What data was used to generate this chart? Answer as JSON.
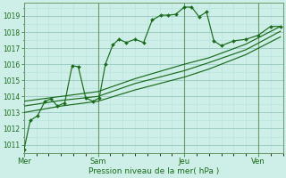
{
  "xlabel": "Pression niveau de la mer( hPa )",
  "bg_color": "#ceeee8",
  "grid_major_color": "#9ecec8",
  "grid_minor_color": "#b8e4e0",
  "line_color": "#1a6b1a",
  "spine_color": "#6a9a6a",
  "ylim": [
    1010.5,
    1019.8
  ],
  "yticks": [
    1011,
    1012,
    1013,
    1014,
    1015,
    1016,
    1017,
    1018,
    1019
  ],
  "xlim": [
    0,
    10.5
  ],
  "day_labels": [
    "Mer",
    "Sam",
    "Jeu",
    "Ven"
  ],
  "day_positions": [
    0.0,
    3.0,
    6.5,
    9.5
  ],
  "vline_positions": [
    0.0,
    3.0,
    6.5,
    9.5
  ],
  "line1_x": [
    0.0,
    0.25,
    0.55,
    0.85,
    1.1,
    1.35,
    1.65,
    1.95,
    2.2,
    2.5,
    2.8,
    3.05,
    3.3,
    3.6,
    3.85,
    4.15,
    4.5,
    4.85,
    5.2,
    5.55,
    5.85,
    6.15,
    6.5,
    6.8,
    7.1,
    7.4,
    7.7,
    8.0,
    8.5,
    9.0,
    9.5,
    10.0,
    10.4
  ],
  "line1_y": [
    1010.7,
    1012.5,
    1012.8,
    1013.7,
    1013.85,
    1013.4,
    1013.6,
    1015.9,
    1015.85,
    1013.9,
    1013.7,
    1013.9,
    1016.0,
    1017.2,
    1017.55,
    1017.35,
    1017.55,
    1017.35,
    1018.75,
    1019.05,
    1019.05,
    1019.1,
    1019.55,
    1019.55,
    1018.95,
    1019.25,
    1017.45,
    1017.15,
    1017.45,
    1017.55,
    1017.8,
    1018.35,
    1018.35
  ],
  "line2_x": [
    0.0,
    1.5,
    3.0,
    4.5,
    6.5,
    7.5,
    9.0,
    10.4
  ],
  "line2_y": [
    1013.7,
    1014.0,
    1014.3,
    1015.1,
    1016.0,
    1016.4,
    1017.25,
    1018.35
  ],
  "line3_x": [
    0.0,
    1.5,
    3.0,
    4.5,
    6.5,
    7.5,
    9.0,
    10.4
  ],
  "line3_y": [
    1013.4,
    1013.75,
    1014.0,
    1014.8,
    1015.6,
    1016.1,
    1016.9,
    1018.05
  ],
  "line4_x": [
    0.0,
    1.5,
    3.0,
    4.5,
    6.5,
    7.5,
    9.0,
    10.4
  ],
  "line4_y": [
    1013.0,
    1013.4,
    1013.7,
    1014.4,
    1015.2,
    1015.7,
    1016.6,
    1017.7
  ]
}
